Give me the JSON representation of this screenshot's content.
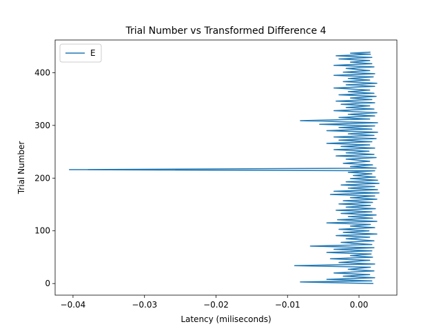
{
  "chart_data": {
    "type": "line",
    "title": "Trial Number vs Transformed Difference 4",
    "xlabel": "Latency (miliseconds)",
    "ylabel": "Trial Number",
    "xlim": [
      -0.0425,
      0.0053
    ],
    "ylim": [
      -22,
      462
    ],
    "xticks": [
      {
        "value": -0.04,
        "label": "−0.04"
      },
      {
        "value": -0.03,
        "label": "−0.03"
      },
      {
        "value": -0.02,
        "label": "−0.02"
      },
      {
        "value": -0.01,
        "label": "−0.01"
      },
      {
        "value": 0.0,
        "label": "0.00"
      }
    ],
    "yticks": [
      {
        "value": 0,
        "label": "0"
      },
      {
        "value": 100,
        "label": "100"
      },
      {
        "value": 200,
        "label": "200"
      },
      {
        "value": 300,
        "label": "300"
      },
      {
        "value": 400,
        "label": "400"
      }
    ],
    "grid": false,
    "legend_position": "top-left",
    "series": [
      {
        "name": "E",
        "color": "#1f77b4",
        "note_points_are_x_latency_y_trial": true,
        "points": [
          [
            0.002,
            0
          ],
          [
            -0.0082,
            3
          ],
          [
            0.0018,
            5
          ],
          [
            -0.0045,
            8
          ],
          [
            0.0022,
            11
          ],
          [
            -0.0022,
            14
          ],
          [
            0.0015,
            17
          ],
          [
            -0.0035,
            20
          ],
          [
            0.0021,
            24
          ],
          [
            -0.0015,
            27
          ],
          [
            0.0016,
            31
          ],
          [
            -0.009,
            34
          ],
          [
            0.0022,
            37
          ],
          [
            -0.0028,
            40
          ],
          [
            0.0015,
            44
          ],
          [
            -0.004,
            47
          ],
          [
            0.0019,
            50
          ],
          [
            -0.0012,
            53
          ],
          [
            0.0017,
            56
          ],
          [
            -0.0045,
            59
          ],
          [
            0.0018,
            62
          ],
          [
            -0.0035,
            65
          ],
          [
            0.0021,
            68
          ],
          [
            -0.0068,
            71
          ],
          [
            0.0018,
            74
          ],
          [
            -0.0025,
            78
          ],
          [
            0.0021,
            81
          ],
          [
            -0.0018,
            85
          ],
          [
            0.0015,
            88
          ],
          [
            -0.0032,
            91
          ],
          [
            0.0025,
            94
          ],
          [
            -0.0022,
            97
          ],
          [
            0.0014,
            100
          ],
          [
            -0.0028,
            103
          ],
          [
            0.0022,
            106
          ],
          [
            -0.0012,
            109
          ],
          [
            0.0016,
            112
          ],
          [
            -0.0045,
            115
          ],
          [
            0.0025,
            118
          ],
          [
            -0.003,
            121
          ],
          [
            0.0019,
            124
          ],
          [
            -0.0015,
            127
          ],
          [
            0.0024,
            130
          ],
          [
            -0.0025,
            133
          ],
          [
            0.0018,
            136
          ],
          [
            -0.0032,
            139
          ],
          [
            0.0023,
            142
          ],
          [
            -0.0018,
            145
          ],
          [
            0.0016,
            148
          ],
          [
            -0.0028,
            151
          ],
          [
            0.0019,
            154
          ],
          [
            -0.0022,
            157
          ],
          [
            0.0025,
            160
          ],
          [
            -0.0012,
            163
          ],
          [
            0.0022,
            166
          ],
          [
            -0.004,
            169
          ],
          [
            0.0028,
            172
          ],
          [
            -0.0035,
            175
          ],
          [
            0.0026,
            178
          ],
          [
            -0.0015,
            181
          ],
          [
            0.0022,
            184
          ],
          [
            -0.0025,
            187
          ],
          [
            0.0028,
            190
          ],
          [
            -0.0018,
            193
          ],
          [
            0.0026,
            196
          ],
          [
            -0.0012,
            199
          ],
          [
            0.0023,
            202
          ],
          [
            -0.0008,
            205
          ],
          [
            0.0018,
            208
          ],
          [
            -0.0015,
            211
          ],
          [
            0.0022,
            214
          ],
          [
            -0.0405,
            216
          ],
          [
            0.0024,
            219
          ],
          [
            -0.0012,
            222
          ],
          [
            0.0019,
            225
          ],
          [
            -0.0022,
            228
          ],
          [
            0.0015,
            232
          ],
          [
            -0.0018,
            236
          ],
          [
            0.0024,
            239
          ],
          [
            -0.0032,
            242
          ],
          [
            0.0021,
            245
          ],
          [
            -0.0018,
            248
          ],
          [
            0.0014,
            251
          ],
          [
            -0.0035,
            254
          ],
          [
            0.0022,
            257
          ],
          [
            -0.0025,
            260
          ],
          [
            0.0015,
            263
          ],
          [
            -0.0045,
            266
          ],
          [
            0.0018,
            269
          ],
          [
            -0.0028,
            272
          ],
          [
            0.0024,
            275
          ],
          [
            -0.0035,
            278
          ],
          [
            0.0021,
            281
          ],
          [
            -0.0015,
            284
          ],
          [
            0.0026,
            287
          ],
          [
            -0.0045,
            290
          ],
          [
            0.0018,
            293
          ],
          [
            -0.0028,
            296
          ],
          [
            0.0022,
            299
          ],
          [
            -0.0055,
            302
          ],
          [
            0.0026,
            305
          ],
          [
            -0.0082,
            309
          ],
          [
            0.0015,
            312
          ],
          [
            -0.0028,
            315
          ],
          [
            0.0022,
            318
          ],
          [
            -0.0015,
            321
          ],
          [
            0.0025,
            324
          ],
          [
            -0.0035,
            328
          ],
          [
            0.0021,
            331
          ],
          [
            -0.0018,
            334
          ],
          [
            0.0015,
            337
          ],
          [
            -0.0025,
            340
          ],
          [
            0.0022,
            343
          ],
          [
            -0.0032,
            346
          ],
          [
            0.0018,
            349
          ],
          [
            -0.0012,
            352
          ],
          [
            0.0024,
            355
          ],
          [
            -0.0028,
            358
          ],
          [
            0.0021,
            361
          ],
          [
            -0.0015,
            364
          ],
          [
            0.0015,
            367
          ],
          [
            -0.0035,
            371
          ],
          [
            0.0022,
            374
          ],
          [
            -0.0018,
            377
          ],
          [
            0.0025,
            380
          ],
          [
            -0.0022,
            383
          ],
          [
            0.0015,
            386
          ],
          [
            -0.0015,
            389
          ],
          [
            0.002,
            392
          ],
          [
            -0.0035,
            395
          ],
          [
            0.0022,
            398
          ],
          [
            -0.0022,
            401
          ],
          [
            0.0015,
            404
          ],
          [
            -0.0018,
            408
          ],
          [
            0.0021,
            411
          ],
          [
            -0.0035,
            414
          ],
          [
            0.0018,
            417
          ],
          [
            -0.0012,
            420
          ],
          [
            0.0015,
            423
          ],
          [
            -0.0028,
            426
          ],
          [
            0.0018,
            429
          ],
          [
            -0.0032,
            432
          ],
          [
            0.0016,
            435
          ],
          [
            -0.0012,
            437
          ],
          [
            0.0016,
            439
          ]
        ]
      }
    ]
  }
}
